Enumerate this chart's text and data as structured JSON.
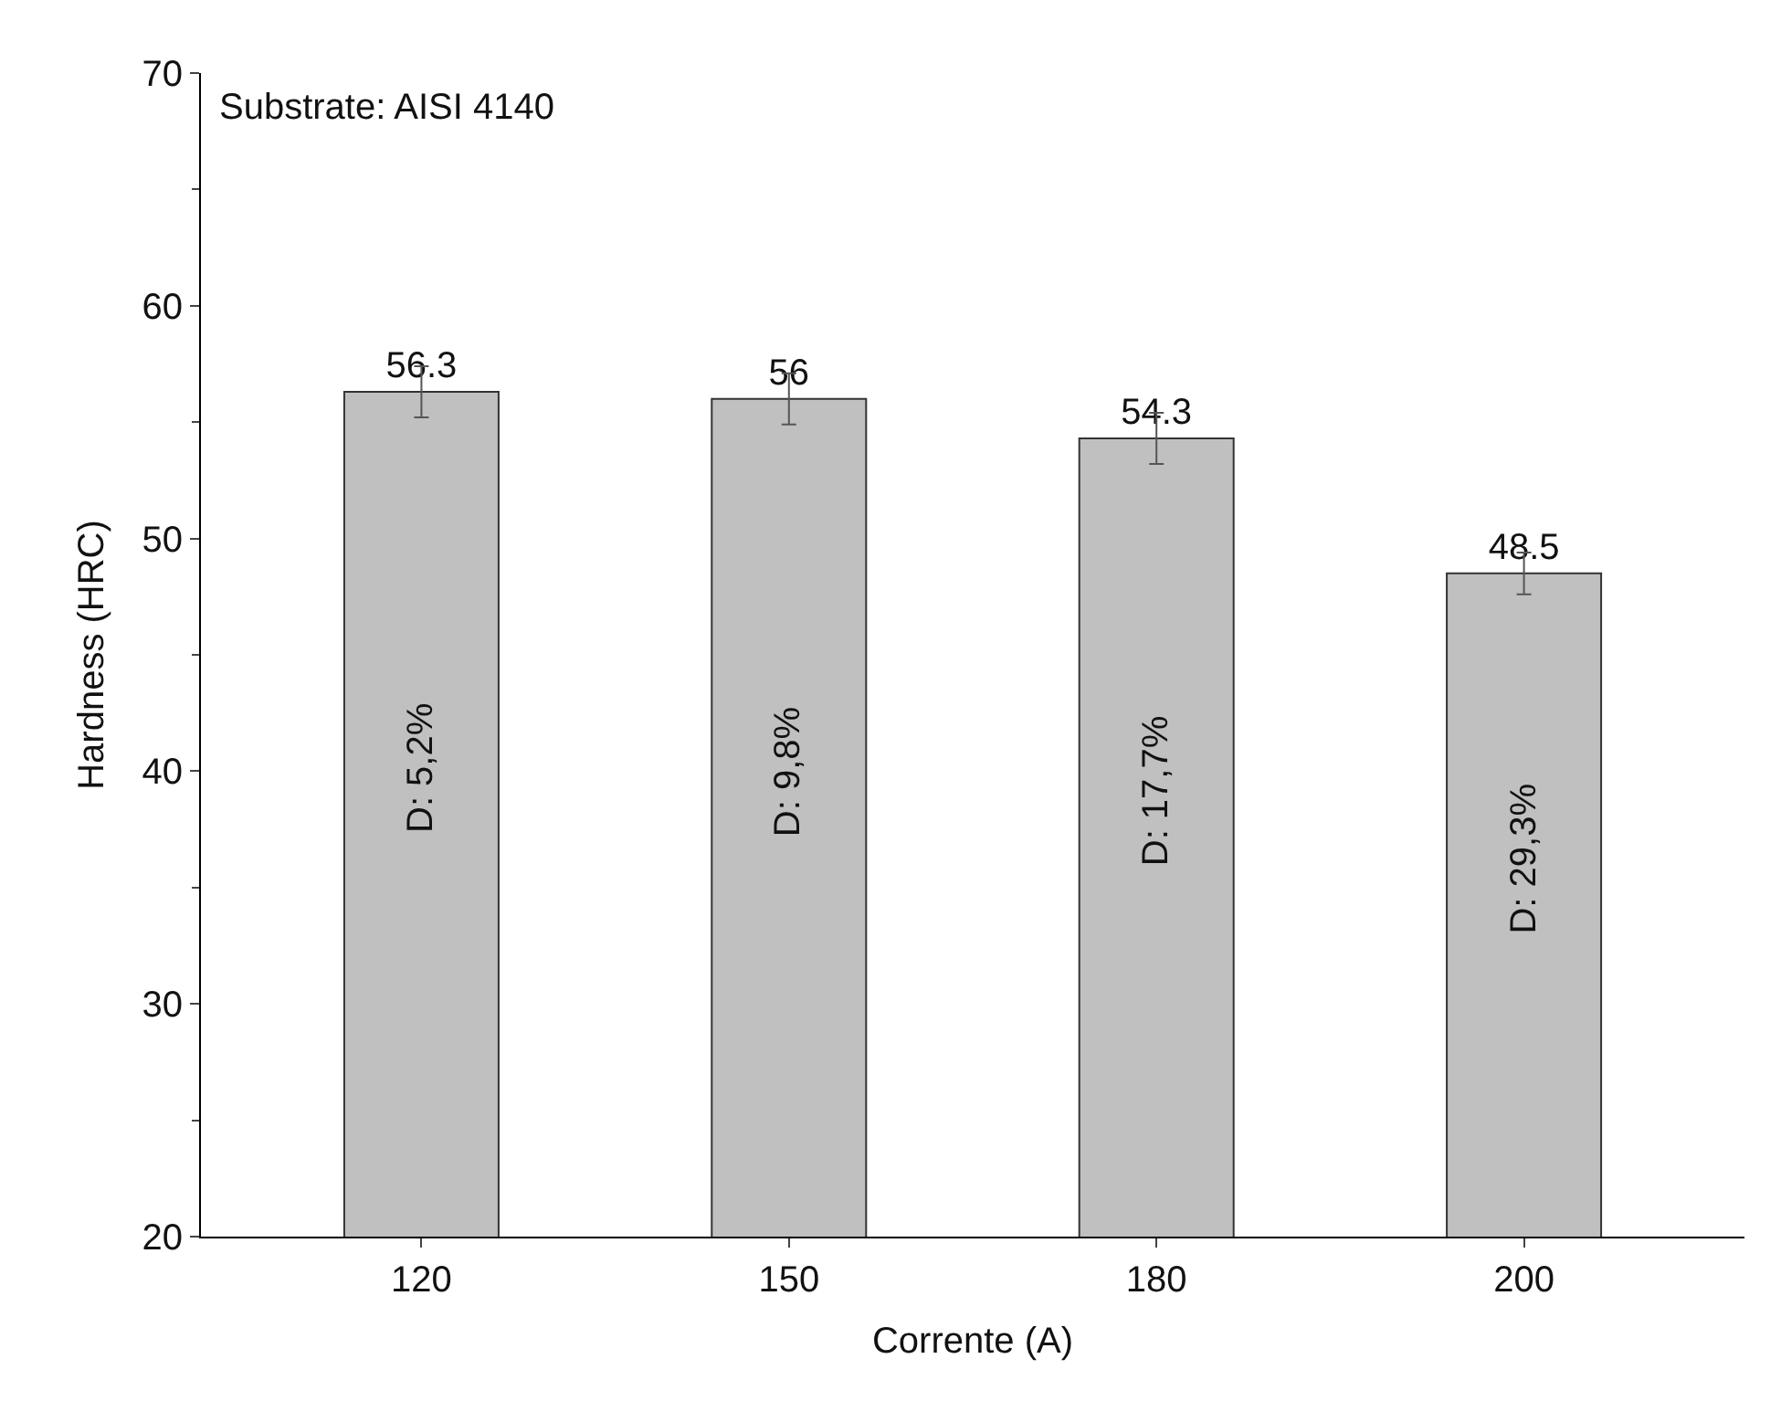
{
  "chart_data": {
    "type": "bar",
    "xlabel": "Corrente (A)",
    "ylabel": "Hardness (HRC)",
    "categories": [
      "120",
      "150",
      "180",
      "200"
    ],
    "values": [
      56.3,
      56,
      54.3,
      48.5
    ],
    "errors": [
      1.1,
      1.1,
      1.1,
      0.9
    ],
    "color": "#c0c0c0",
    "data_labels": true,
    "ylim": [
      20,
      70
    ],
    "yticks": [
      20,
      30,
      40,
      50,
      60,
      70
    ],
    "annotations": [
      "Substrate: AISI 4140",
      "D: 5,2%",
      "D: 9,8%",
      "D: 17,7%",
      "D: 29,3%"
    ]
  }
}
